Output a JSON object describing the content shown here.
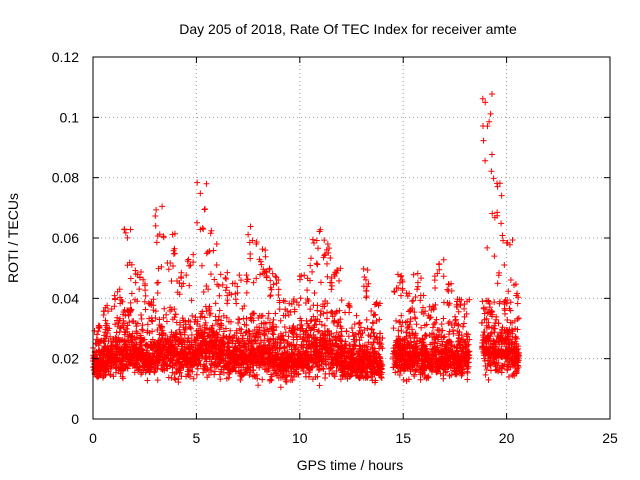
{
  "chart_data": {
    "type": "scatter",
    "title": "Day 205 of 2018, Rate Of TEC Index for receiver amte",
    "xlabel": "GPS time / hours",
    "ylabel": "ROTI / TECUs",
    "xlim": [
      0,
      25
    ],
    "ylim": [
      0,
      0.12
    ],
    "xticks": [
      "0",
      "5",
      "10",
      "15",
      "20",
      "25"
    ],
    "yticks": [
      "0",
      "0.02",
      "0.04",
      "0.06",
      "0.08",
      "0.1",
      "0.12"
    ],
    "grid": true,
    "marker": "plus",
    "color": "#ff0000",
    "series": [
      {
        "bands": [
          {
            "x": [
              0.0,
              0.5
            ],
            "base": 0.018,
            "spread": 0.006,
            "peak": 0.032
          },
          {
            "x": [
              0.5,
              1.0
            ],
            "base": 0.02,
            "spread": 0.008,
            "peak": 0.038
          },
          {
            "x": [
              1.0,
              1.5
            ],
            "base": 0.021,
            "spread": 0.009,
            "peak": 0.045
          },
          {
            "x": [
              1.5,
              2.0
            ],
            "base": 0.022,
            "spread": 0.01,
            "peak": 0.063
          },
          {
            "x": [
              2.0,
              2.5
            ],
            "base": 0.021,
            "spread": 0.009,
            "peak": 0.05
          },
          {
            "x": [
              2.5,
              3.0
            ],
            "base": 0.02,
            "spread": 0.009,
            "peak": 0.045
          },
          {
            "x": [
              3.0,
              3.5
            ],
            "base": 0.022,
            "spread": 0.01,
            "peak": 0.072
          },
          {
            "x": [
              3.5,
              4.0
            ],
            "base": 0.022,
            "spread": 0.01,
            "peak": 0.063
          },
          {
            "x": [
              4.0,
              4.5
            ],
            "base": 0.021,
            "spread": 0.009,
            "peak": 0.05
          },
          {
            "x": [
              4.5,
              5.0
            ],
            "base": 0.021,
            "spread": 0.009,
            "peak": 0.055
          },
          {
            "x": [
              5.0,
              5.5
            ],
            "base": 0.023,
            "spread": 0.011,
            "peak": 0.079
          },
          {
            "x": [
              5.5,
              6.0
            ],
            "base": 0.023,
            "spread": 0.011,
            "peak": 0.063
          },
          {
            "x": [
              6.0,
              6.5
            ],
            "base": 0.021,
            "spread": 0.009,
            "peak": 0.05
          },
          {
            "x": [
              6.5,
              7.0
            ],
            "base": 0.02,
            "spread": 0.009,
            "peak": 0.045
          },
          {
            "x": [
              7.0,
              7.5
            ],
            "base": 0.02,
            "spread": 0.009,
            "peak": 0.05
          },
          {
            "x": [
              7.5,
              8.0
            ],
            "base": 0.021,
            "spread": 0.01,
            "peak": 0.067
          },
          {
            "x": [
              8.0,
              8.5
            ],
            "base": 0.021,
            "spread": 0.009,
            "peak": 0.058
          },
          {
            "x": [
              8.5,
              9.0
            ],
            "base": 0.02,
            "spread": 0.009,
            "peak": 0.05
          },
          {
            "x": [
              9.0,
              9.5
            ],
            "base": 0.019,
            "spread": 0.008,
            "peak": 0.04
          },
          {
            "x": [
              9.5,
              10.0
            ],
            "base": 0.019,
            "spread": 0.008,
            "peak": 0.04
          },
          {
            "x": [
              10.0,
              10.5
            ],
            "base": 0.02,
            "spread": 0.009,
            "peak": 0.048
          },
          {
            "x": [
              10.5,
              11.0
            ],
            "base": 0.022,
            "spread": 0.011,
            "peak": 0.063
          },
          {
            "x": [
              11.0,
              11.5
            ],
            "base": 0.023,
            "spread": 0.011,
            "peak": 0.066
          },
          {
            "x": [
              11.5,
              12.0
            ],
            "base": 0.021,
            "spread": 0.01,
            "peak": 0.05
          },
          {
            "x": [
              12.0,
              12.5
            ],
            "base": 0.019,
            "spread": 0.008,
            "peak": 0.04
          },
          {
            "x": [
              12.5,
              13.0
            ],
            "base": 0.018,
            "spread": 0.007,
            "peak": 0.035
          },
          {
            "x": [
              13.0,
              13.5
            ],
            "base": 0.019,
            "spread": 0.008,
            "peak": 0.05
          },
          {
            "x": [
              13.5,
              14.0
            ],
            "base": 0.018,
            "spread": 0.007,
            "peak": 0.04
          },
          {
            "x": [
              14.5,
              15.0
            ],
            "base": 0.021,
            "spread": 0.009,
            "peak": 0.049
          },
          {
            "x": [
              15.0,
              15.5
            ],
            "base": 0.02,
            "spread": 0.008,
            "peak": 0.042
          },
          {
            "x": [
              15.5,
              16.0
            ],
            "base": 0.02,
            "spread": 0.008,
            "peak": 0.049
          },
          {
            "x": [
              16.0,
              16.5
            ],
            "base": 0.019,
            "spread": 0.008,
            "peak": 0.04
          },
          {
            "x": [
              16.5,
              17.0
            ],
            "base": 0.02,
            "spread": 0.009,
            "peak": 0.054
          },
          {
            "x": [
              17.0,
              17.5
            ],
            "base": 0.02,
            "spread": 0.008,
            "peak": 0.045
          },
          {
            "x": [
              17.5,
              18.2
            ],
            "base": 0.02,
            "spread": 0.008,
            "peak": 0.04
          },
          {
            "x": [
              18.8,
              19.3
            ],
            "base": 0.024,
            "spread": 0.012,
            "peak": 0.109
          },
          {
            "x": [
              19.3,
              19.8
            ],
            "base": 0.023,
            "spread": 0.011,
            "peak": 0.08
          },
          {
            "x": [
              19.8,
              20.3
            ],
            "base": 0.023,
            "spread": 0.011,
            "peak": 0.063
          },
          {
            "x": [
              20.3,
              20.6
            ],
            "base": 0.02,
            "spread": 0.009,
            "peak": 0.046
          }
        ]
      }
    ]
  }
}
